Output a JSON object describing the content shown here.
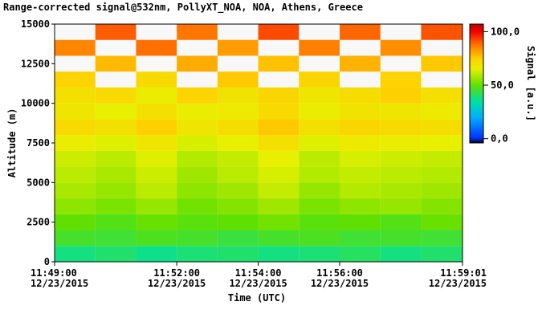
{
  "chart_data": {
    "type": "heatmap",
    "title": "Range-corrected signal@532nm, PollyXT_NOA, NOA, Athens, Greece",
    "xlabel": "Time (UTC)",
    "ylabel": "Altitude (m)",
    "colorbar_label": "Signal [a.u.]",
    "x": [
      "2015-12-23T11:49:00",
      "2015-12-23T11:50:00",
      "2015-12-23T11:51:00",
      "2015-12-23T11:52:00",
      "2015-12-23T11:53:00",
      "2015-12-23T11:54:00",
      "2015-12-23T11:55:00",
      "2015-12-23T11:56:00",
      "2015-12-23T11:57:00",
      "2015-12-23T11:58:00"
    ],
    "xlim": [
      "2015-12-23T11:49:00",
      "2015-12-23T11:59:01"
    ],
    "xticks": [
      {
        "value": "2015-12-23T11:49:00",
        "label": [
          "11:49:00",
          "12/23/2015"
        ]
      },
      {
        "value": "2015-12-23T11:52:00",
        "label": [
          "11:52:00",
          "12/23/2015"
        ]
      },
      {
        "value": "2015-12-23T11:54:00",
        "label": [
          "11:54:00",
          "12/23/2015"
        ]
      },
      {
        "value": "2015-12-23T11:56:00",
        "label": [
          "11:56:00",
          "12/23/2015"
        ]
      },
      {
        "value": "2015-12-23T11:59:01",
        "label": [
          "11:59:01",
          "12/23/2015"
        ]
      }
    ],
    "ybins": [
      0,
      1000,
      2000,
      3000,
      4000,
      5000,
      6000,
      7000,
      8000,
      9000,
      10000,
      11000,
      12000,
      13000,
      14000,
      15000
    ],
    "ylim": [
      0,
      15000
    ],
    "yticks": [
      0,
      2500,
      5000,
      7500,
      10000,
      12500,
      15000
    ],
    "z": [
      [
        38,
        40,
        37,
        39,
        40,
        38,
        39,
        41,
        38,
        40
      ],
      [
        46,
        45,
        47,
        46,
        44,
        46,
        47,
        45,
        46,
        45
      ],
      [
        50,
        48,
        51,
        49,
        50,
        52,
        49,
        50,
        48,
        51
      ],
      [
        55,
        53,
        56,
        52,
        54,
        57,
        53,
        55,
        56,
        54
      ],
      [
        58,
        56,
        60,
        55,
        57,
        61,
        56,
        59,
        58,
        57
      ],
      [
        60,
        58,
        62,
        57,
        60,
        63,
        59,
        61,
        60,
        59
      ],
      [
        62,
        60,
        64,
        59,
        61,
        65,
        60,
        63,
        62,
        61
      ],
      [
        66,
        64,
        68,
        63,
        65,
        70,
        64,
        67,
        66,
        65
      ],
      [
        72,
        70,
        75,
        68,
        71,
        76,
        70,
        73,
        72,
        71
      ],
      [
        68,
        65,
        70,
        66,
        67,
        72,
        66,
        69,
        68,
        67
      ],
      [
        70,
        72,
        66,
        74,
        69,
        73,
        68,
        71,
        75,
        70
      ],
      [
        74,
        null,
        72,
        null,
        76,
        null,
        73,
        null,
        74,
        null
      ],
      [
        null,
        78,
        null,
        80,
        null,
        77,
        null,
        79,
        null,
        76
      ],
      [
        85,
        null,
        88,
        null,
        82,
        null,
        86,
        null,
        84,
        null
      ],
      [
        null,
        90,
        null,
        87,
        null,
        92,
        null,
        89,
        null,
        91
      ]
    ],
    "clim": [
      -4,
      107
    ],
    "cticks": [
      {
        "value": 0,
        "label": "0,0"
      },
      {
        "value": 50,
        "label": "50,0"
      },
      {
        "value": 100,
        "label": "100,0"
      }
    ]
  }
}
